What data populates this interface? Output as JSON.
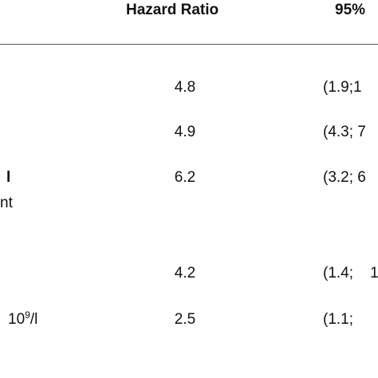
{
  "header": {
    "hazard_ratio": "Hazard Ratio",
    "ci": "95%"
  },
  "rows": [
    {
      "hr": "4.8",
      "ci": "(1.9;1"
    },
    {
      "hr": "4.9",
      "ci": "(4.3; 7"
    },
    {
      "label": "l",
      "sublabel": "nt",
      "hr": "6.2",
      "ci": "(3.2; 6"
    },
    {
      "hr": "4.2",
      "ci": "(1.4;    1"
    },
    {
      "label": {
        "base": "10",
        "sup": "9",
        "rest": "/l"
      },
      "hr": "2.5",
      "ci": "(1.1;"
    }
  ]
}
